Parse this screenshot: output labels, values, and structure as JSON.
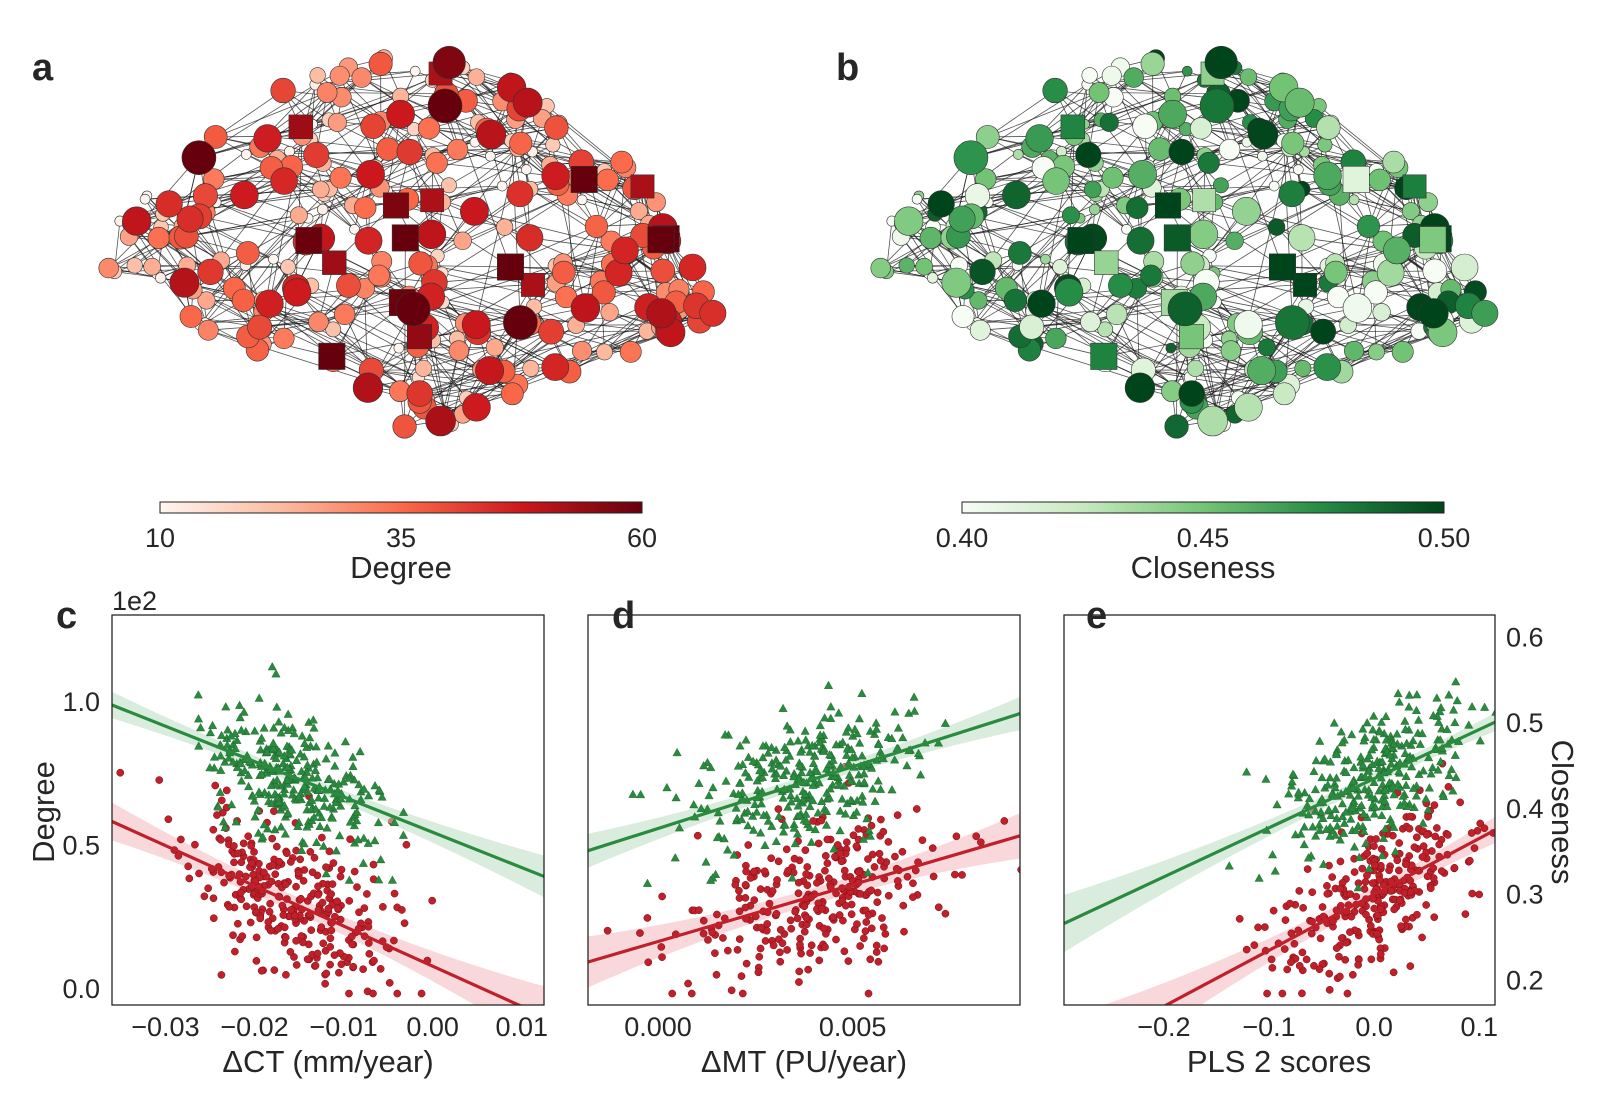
{
  "figure": {
    "panel_labels": {
      "a": "a",
      "b": "b",
      "c": "c",
      "d": "d",
      "e": "e"
    },
    "colorbars": {
      "degree": {
        "label": "Degree",
        "ticks": [
          "10",
          "35",
          "60"
        ],
        "min": 10,
        "max": 60,
        "colormap": "Reds"
      },
      "closeness": {
        "label": "Closeness",
        "ticks": [
          "0.40",
          "0.45",
          "0.50"
        ],
        "min": 0.4,
        "max": 0.5,
        "colormap": "Greens"
      }
    },
    "colors": {
      "degree_series": "#c0202a",
      "closeness_series": "#2a8a3e",
      "degree_band": "#f2b8bd",
      "closeness_band": "#b9dcc2",
      "network_edge": "#1a1a1a"
    }
  },
  "chart_data": [
    {
      "type": "network",
      "panel": "a",
      "node_color_metric": "Degree",
      "colormap": "Reds",
      "node_shapes": [
        "circle",
        "square"
      ],
      "node_count_approx": 308
    },
    {
      "type": "network",
      "panel": "b",
      "node_color_metric": "Closeness",
      "colormap": "Greens",
      "node_shapes": [
        "circle",
        "square"
      ],
      "node_count_approx": 308
    },
    {
      "type": "scatter",
      "panel": "c",
      "xlabel": "ΔCT (mm/year)",
      "ylabel_left": "Degree",
      "y_offset_text": "1e2",
      "xlim": [
        -0.036,
        0.0125
      ],
      "ylim_left": [
        -0.06,
        1.3
      ],
      "ylim_right": [
        0.17,
        0.625
      ],
      "xticks": [
        "-0.03",
        "-0.02",
        "-0.01",
        "0.00",
        "0.01"
      ],
      "yticks_left": [
        "0.0",
        "0.5",
        "1.0"
      ],
      "series": [
        {
          "name": "Degree",
          "marker": "circle",
          "axis": "left",
          "x_center": -0.016,
          "x_sd": 0.0055,
          "y_mean": 0.28,
          "y_sd": 0.17,
          "n": 300,
          "fit": {
            "x0": -0.036,
            "y0": 0.58,
            "x1": 0.0125,
            "y1": -0.1
          }
        },
        {
          "name": "Closeness",
          "marker": "triangle",
          "axis": "right",
          "x_center": -0.016,
          "x_sd": 0.005,
          "y_mean": 0.45,
          "y_sd": 0.05,
          "n": 300,
          "fit": {
            "x0": -0.036,
            "y0": 0.52,
            "x1": 0.0125,
            "y1": 0.32
          }
        }
      ]
    },
    {
      "type": "scatter",
      "panel": "d",
      "xlabel": "ΔMT (PU/year)",
      "xlim": [
        -0.0018,
        0.0093
      ],
      "ylim_left": [
        -0.06,
        1.3
      ],
      "ylim_right": [
        0.17,
        0.625
      ],
      "xticks": [
        "0.000",
        "0.005"
      ],
      "series": [
        {
          "name": "Degree",
          "marker": "circle",
          "axis": "left",
          "x_center": 0.004,
          "x_sd": 0.0017,
          "y_mean": 0.28,
          "y_sd": 0.17,
          "n": 300,
          "fit": {
            "x0": -0.0018,
            "y0": 0.09,
            "x1": 0.0093,
            "y1": 0.53
          }
        },
        {
          "name": "Closeness",
          "marker": "triangle",
          "axis": "right",
          "x_center": 0.0038,
          "x_sd": 0.0015,
          "y_mean": 0.45,
          "y_sd": 0.05,
          "n": 300,
          "fit": {
            "x0": -0.0018,
            "y0": 0.35,
            "x1": 0.0093,
            "y1": 0.51
          }
        }
      ]
    },
    {
      "type": "scatter",
      "panel": "e",
      "xlabel": "PLS 2 scores",
      "ylabel_right": "Closeness",
      "xlim": [
        -0.295,
        0.115
      ],
      "ylim_left": [
        -0.06,
        1.3
      ],
      "ylim_right": [
        0.17,
        0.625
      ],
      "xticks": [
        "-0.2",
        "-0.1",
        "0.0",
        "0.1"
      ],
      "yticks_right": [
        "0.2",
        "0.3",
        "0.4",
        "0.5",
        "0.6"
      ],
      "series": [
        {
          "name": "Degree",
          "marker": "circle",
          "axis": "left",
          "x_center": 0.0,
          "x_sd": 0.05,
          "y_mean": 0.28,
          "y_sd": 0.17,
          "n": 300,
          "fit": {
            "x0": -0.295,
            "y0": -0.25,
            "x1": 0.115,
            "y1": 0.55
          }
        },
        {
          "name": "Closeness",
          "marker": "triangle",
          "axis": "right",
          "x_center": 0.0,
          "x_sd": 0.045,
          "y_mean": 0.45,
          "y_sd": 0.05,
          "n": 300,
          "fit": {
            "x0": -0.295,
            "y0": 0.265,
            "x1": 0.115,
            "y1": 0.5
          }
        }
      ]
    }
  ]
}
